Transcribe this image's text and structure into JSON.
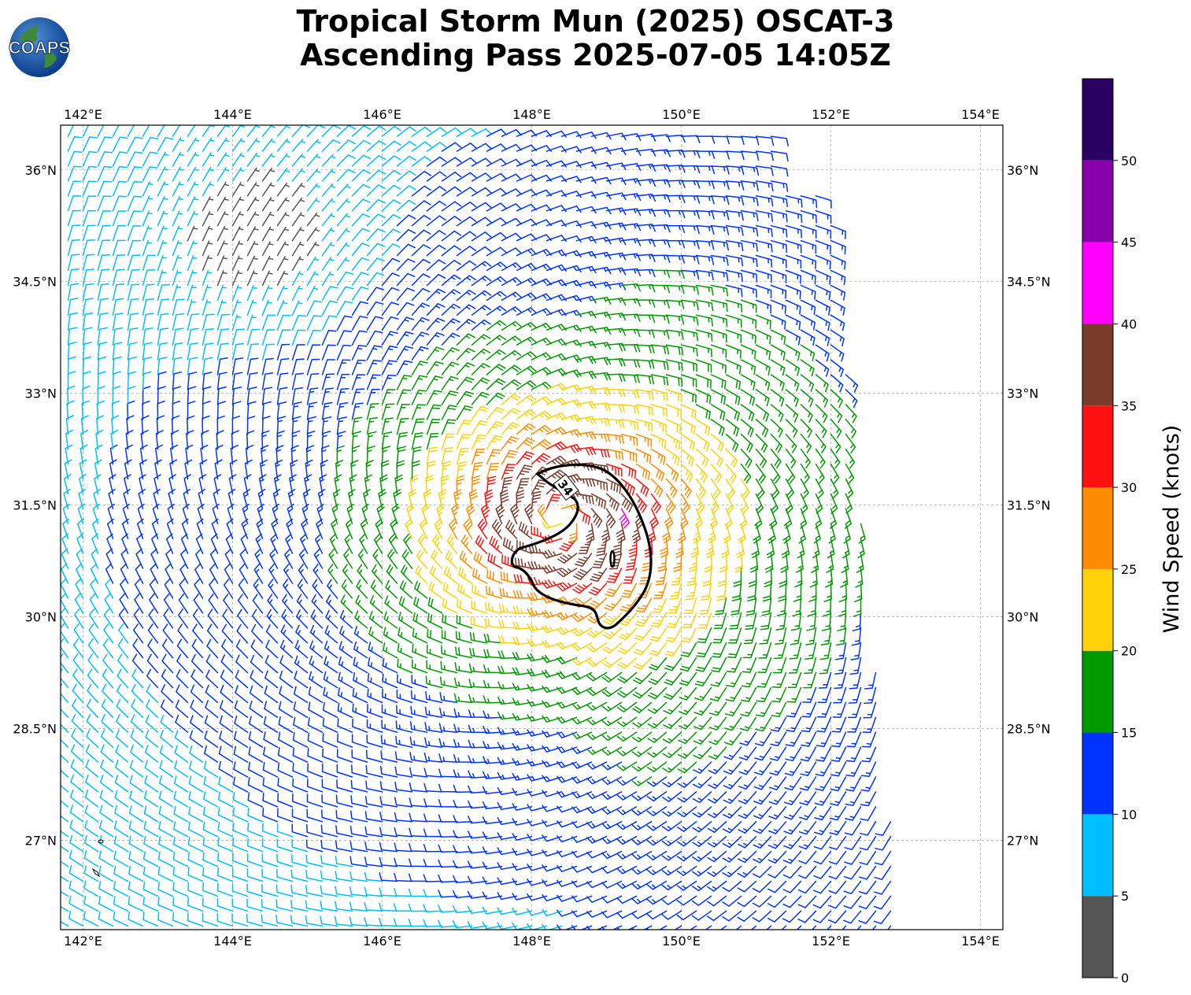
{
  "header": {
    "title_line1": "Tropical Storm Mun (2025) OSCAT-3",
    "title_line2": "Ascending Pass 2025-07-05 14:05Z",
    "logo_text": "COAPS"
  },
  "map": {
    "lon_range": [
      141.7,
      154.3
    ],
    "lat_range": [
      25.8,
      36.6
    ],
    "lon_ticks": [
      "142°E",
      "144°E",
      "146°E",
      "148°E",
      "150°E",
      "152°E",
      "154°E"
    ],
    "lat_ticks": [
      "27°N",
      "28.5°N",
      "30°N",
      "31.5°N",
      "33°N",
      "34.5°N",
      "36°N"
    ],
    "gridlines": true,
    "storm_center": {
      "lon": 148.4,
      "lat": 31.3
    },
    "contour_label": "34",
    "swath_edge_east_lon": [
      151.9,
      152.9
    ]
  },
  "colorbar": {
    "label": "Wind Speed (knots)",
    "ticks": [
      "0",
      "5",
      "10",
      "15",
      "20",
      "25",
      "30",
      "35",
      "40",
      "45",
      "50"
    ],
    "bins": [
      {
        "range": [
          0,
          5
        ],
        "color": "#555555"
      },
      {
        "range": [
          5,
          10
        ],
        "color": "#00bfff"
      },
      {
        "range": [
          10,
          15
        ],
        "color": "#0033ff"
      },
      {
        "range": [
          15,
          20
        ],
        "color": "#009900"
      },
      {
        "range": [
          20,
          25
        ],
        "color": "#ffd20a"
      },
      {
        "range": [
          25,
          30
        ],
        "color": "#ff8c00"
      },
      {
        "range": [
          30,
          35
        ],
        "color": "#ff1111"
      },
      {
        "range": [
          35,
          40
        ],
        "color": "#7a3b2a"
      },
      {
        "range": [
          40,
          45
        ],
        "color": "#ff00ff"
      },
      {
        "range": [
          45,
          50
        ],
        "color": "#8800aa"
      },
      {
        "range": [
          50,
          55
        ],
        "color": "#2b0063"
      }
    ]
  }
}
